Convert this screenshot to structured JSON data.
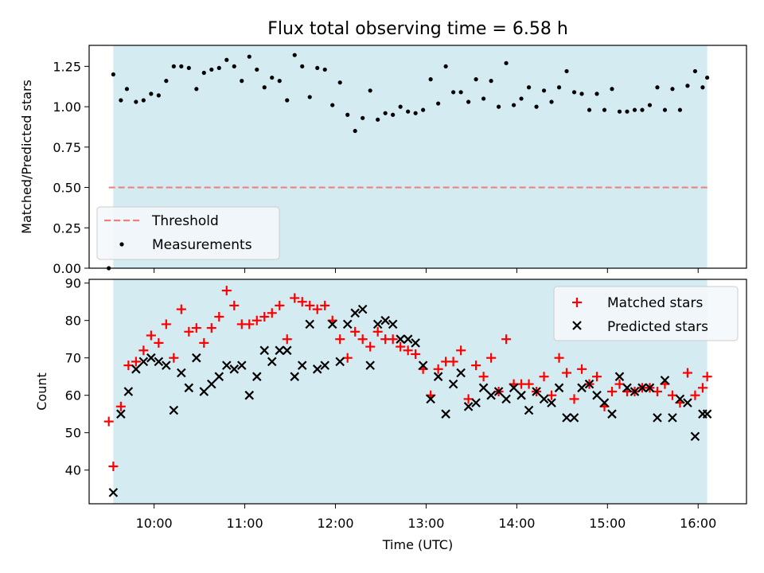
{
  "chart_data": [
    {
      "type": "scatter",
      "title": "Flux total observing time = 6.58 h",
      "xlabel": "",
      "ylabel": "Matched/Predicted stars",
      "ylim": [
        0,
        1.38
      ],
      "yticks": [
        "0.00",
        "0.25",
        "0.50",
        "0.75",
        "1.00",
        "1.25"
      ],
      "ytick_values": [
        0,
        0.25,
        0.5,
        0.75,
        1.0,
        1.25
      ],
      "xlim": [
        "09:17",
        "16:32"
      ],
      "xticks": [
        "10:00",
        "11:00",
        "12:00",
        "13:00",
        "14:00",
        "15:00",
        "16:00"
      ],
      "shaded_span": [
        "09:33",
        "16:06"
      ],
      "shaded_color": "#d4ebf1",
      "legend": [
        "Threshold",
        "Measurements"
      ],
      "legend_placement": "lower left",
      "threshold": {
        "name": "Threshold",
        "y": 0.5,
        "x_range": [
          "09:30",
          "16:06"
        ],
        "color": "#f08080",
        "style": "dashed"
      },
      "series": [
        {
          "name": "Measurements",
          "color": "#000000",
          "marker": "dot",
          "x": [
            "09:30",
            "09:33",
            "09:38",
            "09:42",
            "09:48",
            "09:53",
            "09:58",
            "10:03",
            "10:08",
            "10:13",
            "10:18",
            "10:23",
            "10:28",
            "10:33",
            "10:38",
            "10:43",
            "10:48",
            "10:53",
            "10:58",
            "11:03",
            "11:08",
            "11:13",
            "11:18",
            "11:23",
            "11:28",
            "11:33",
            "11:38",
            "11:43",
            "11:48",
            "11:53",
            "11:58",
            "12:03",
            "12:08",
            "12:13",
            "12:18",
            "12:23",
            "12:28",
            "12:33",
            "12:38",
            "12:43",
            "12:48",
            "12:53",
            "12:58",
            "13:03",
            "13:08",
            "13:13",
            "13:18",
            "13:23",
            "13:28",
            "13:33",
            "13:38",
            "13:43",
            "13:48",
            "13:53",
            "13:58",
            "14:03",
            "14:08",
            "14:13",
            "14:18",
            "14:23",
            "14:28",
            "14:33",
            "14:38",
            "14:43",
            "14:48",
            "14:53",
            "14:58",
            "15:03",
            "15:08",
            "15:13",
            "15:18",
            "15:23",
            "15:28",
            "15:33",
            "15:38",
            "15:43",
            "15:48",
            "15:53",
            "15:58",
            "16:03",
            "16:06"
          ],
          "y": [
            0.0,
            1.2,
            1.04,
            1.11,
            1.03,
            1.04,
            1.08,
            1.07,
            1.16,
            1.25,
            1.25,
            1.24,
            1.11,
            1.21,
            1.23,
            1.24,
            1.29,
            1.25,
            1.16,
            1.31,
            1.23,
            1.12,
            1.18,
            1.16,
            1.04,
            1.32,
            1.25,
            1.06,
            1.24,
            1.23,
            1.01,
            1.15,
            0.95,
            0.85,
            0.93,
            1.1,
            0.92,
            0.96,
            0.95,
            1.0,
            0.97,
            0.96,
            0.98,
            1.17,
            1.02,
            1.25,
            1.09,
            1.09,
            1.03,
            1.17,
            1.05,
            1.16,
            1.0,
            1.27,
            1.01,
            1.05,
            1.12,
            1.0,
            1.1,
            1.03,
            1.12,
            1.22,
            1.09,
            1.08,
            0.98,
            1.08,
            0.98,
            1.11,
            0.97,
            0.97,
            0.98,
            0.98,
            1.01,
            1.12,
            0.98,
            1.11,
            0.98,
            1.13,
            1.22,
            1.12,
            1.18
          ]
        }
      ]
    },
    {
      "type": "scatter",
      "title": "",
      "xlabel": "Time (UTC)",
      "ylabel": "Count",
      "ylim": [
        31,
        91
      ],
      "yticks": [
        "40",
        "50",
        "60",
        "70",
        "80",
        "90"
      ],
      "ytick_values": [
        40,
        50,
        60,
        70,
        80,
        90
      ],
      "xlim": [
        "09:17",
        "16:32"
      ],
      "xticks": [
        "10:00",
        "11:00",
        "12:00",
        "13:00",
        "14:00",
        "15:00",
        "16:00"
      ],
      "shaded_span": [
        "09:33",
        "16:06"
      ],
      "shaded_color": "#d4ebf1",
      "legend": [
        "Matched stars",
        "Predicted stars"
      ],
      "legend_placement": "upper right",
      "series": [
        {
          "name": "Matched stars",
          "color": "#ff0000",
          "marker": "plus",
          "x": [
            "09:30",
            "09:33",
            "09:38",
            "09:43",
            "09:48",
            "09:53",
            "09:58",
            "10:03",
            "10:08",
            "10:13",
            "10:18",
            "10:23",
            "10:28",
            "10:33",
            "10:38",
            "10:43",
            "10:48",
            "10:53",
            "10:58",
            "11:03",
            "11:08",
            "11:13",
            "11:18",
            "11:23",
            "11:28",
            "11:33",
            "11:38",
            "11:43",
            "11:48",
            "11:53",
            "11:58",
            "12:03",
            "12:08",
            "12:13",
            "12:18",
            "12:23",
            "12:28",
            "12:33",
            "12:38",
            "12:43",
            "12:48",
            "12:53",
            "12:58",
            "13:03",
            "13:08",
            "13:13",
            "13:18",
            "13:23",
            "13:28",
            "13:33",
            "13:38",
            "13:43",
            "13:48",
            "13:53",
            "13:58",
            "14:03",
            "14:08",
            "14:13",
            "14:18",
            "14:23",
            "14:28",
            "14:33",
            "14:38",
            "14:43",
            "14:48",
            "14:53",
            "14:58",
            "15:03",
            "15:08",
            "15:13",
            "15:18",
            "15:23",
            "15:28",
            "15:33",
            "15:38",
            "15:43",
            "15:48",
            "15:53",
            "15:58",
            "16:03",
            "16:06"
          ],
          "y": [
            53,
            41,
            57,
            68,
            69,
            72,
            76,
            74,
            79,
            70,
            83,
            77,
            78,
            74,
            78,
            81,
            88,
            84,
            79,
            79,
            80,
            81,
            82,
            84,
            75,
            86,
            85,
            84,
            83,
            84,
            80,
            75,
            70,
            77,
            75,
            73,
            77,
            75,
            75,
            73,
            72,
            71,
            67,
            60,
            67,
            69,
            69,
            72,
            59,
            68,
            65,
            70,
            61,
            75,
            63,
            63,
            63,
            61,
            65,
            60,
            70,
            66,
            59,
            67,
            63,
            65,
            57,
            61,
            63,
            61,
            61,
            62,
            62,
            61,
            63,
            60,
            58,
            66,
            60,
            62,
            65
          ]
        },
        {
          "name": "Predicted stars",
          "color": "#000000",
          "marker": "x",
          "x": [
            "09:33",
            "09:38",
            "09:43",
            "09:48",
            "09:53",
            "09:58",
            "10:03",
            "10:08",
            "10:13",
            "10:18",
            "10:23",
            "10:28",
            "10:33",
            "10:38",
            "10:43",
            "10:48",
            "10:53",
            "10:58",
            "11:03",
            "11:08",
            "11:13",
            "11:18",
            "11:23",
            "11:28",
            "11:33",
            "11:38",
            "11:43",
            "11:48",
            "11:53",
            "11:58",
            "12:03",
            "12:08",
            "12:13",
            "12:18",
            "12:23",
            "12:28",
            "12:33",
            "12:38",
            "12:43",
            "12:48",
            "12:53",
            "12:58",
            "13:03",
            "13:08",
            "13:13",
            "13:18",
            "13:23",
            "13:28",
            "13:33",
            "13:38",
            "13:43",
            "13:48",
            "13:53",
            "13:58",
            "14:03",
            "14:08",
            "14:13",
            "14:18",
            "14:23",
            "14:28",
            "14:33",
            "14:38",
            "14:43",
            "14:48",
            "14:53",
            "14:58",
            "15:03",
            "15:08",
            "15:13",
            "15:18",
            "15:23",
            "15:28",
            "15:33",
            "15:38",
            "15:43",
            "15:48",
            "15:53",
            "15:58",
            "16:03",
            "16:06"
          ],
          "y": [
            34,
            55,
            61,
            67,
            69,
            70,
            69,
            68,
            56,
            66,
            62,
            70,
            61,
            63,
            65,
            68,
            67,
            68,
            60,
            65,
            72,
            69,
            72,
            72,
            65,
            68,
            79,
            67,
            68,
            79,
            69,
            79,
            82,
            83,
            68,
            79,
            80,
            79,
            75,
            75,
            74,
            68,
            59,
            65,
            55,
            63,
            66,
            57,
            58,
            62,
            60,
            61,
            59,
            62,
            60,
            56,
            61,
            59,
            58,
            62,
            54,
            54,
            62,
            63,
            60,
            58,
            55,
            65,
            62,
            61,
            62,
            62,
            54,
            64,
            54,
            59,
            58,
            49,
            55,
            55
          ]
        }
      ]
    }
  ]
}
